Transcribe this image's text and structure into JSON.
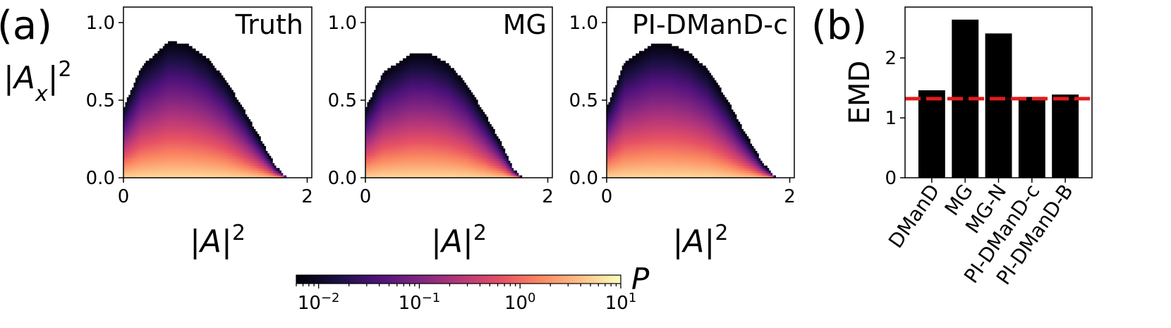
{
  "panel_labels": {
    "a": "(a)",
    "b": "(b)"
  },
  "colorbar": {
    "label": "P",
    "colormap": "magma",
    "scale": "log",
    "range": [
      0.006,
      10
    ],
    "tick_labels": [
      {
        "base": "10",
        "exp": "−2",
        "value": 0.01
      },
      {
        "base": "10",
        "exp": "−1",
        "value": 0.1
      },
      {
        "base": "10",
        "exp": "0",
        "value": 1
      },
      {
        "base": "10",
        "exp": "1",
        "value": 10
      }
    ]
  },
  "chart_data": [
    {
      "type": "heatmap",
      "title": "Truth",
      "xlabel": "|A|²",
      "ylabel": "|Aₓ|²",
      "xlim": [
        0,
        2.05
      ],
      "ylim": [
        0,
        1.1
      ],
      "xticks": [
        "0",
        "2"
      ],
      "yticks": [
        "0.0",
        "0.5",
        "1.0"
      ],
      "support_edge": [
        [
          0,
          0.45
        ],
        [
          0.2,
          0.72
        ],
        [
          0.5,
          0.88
        ],
        [
          0.7,
          0.86
        ],
        [
          0.9,
          0.78
        ],
        [
          1.1,
          0.64
        ],
        [
          1.3,
          0.45
        ],
        [
          1.5,
          0.24
        ],
        [
          1.65,
          0.08
        ],
        [
          1.78,
          0
        ]
      ]
    },
    {
      "type": "heatmap",
      "title": "MG",
      "xlabel": "|A|²",
      "ylabel": "",
      "xlim": [
        0,
        2.05
      ],
      "ylim": [
        0,
        1.1
      ],
      "xticks": [
        "0",
        "2"
      ],
      "yticks": [
        "0.0",
        "0.5",
        "1.0"
      ],
      "support_edge": [
        [
          0,
          0.45
        ],
        [
          0.2,
          0.68
        ],
        [
          0.5,
          0.8
        ],
        [
          0.7,
          0.8
        ],
        [
          0.9,
          0.74
        ],
        [
          1.1,
          0.61
        ],
        [
          1.3,
          0.42
        ],
        [
          1.5,
          0.21
        ],
        [
          1.62,
          0.06
        ],
        [
          1.72,
          0
        ]
      ]
    },
    {
      "type": "heatmap",
      "title": "PI-DManD-c",
      "xlabel": "|A|²",
      "ylabel": "",
      "xlim": [
        0,
        2.05
      ],
      "ylim": [
        0,
        1.1
      ],
      "xticks": [
        "0",
        "2"
      ],
      "yticks": [
        "0.0",
        "0.5",
        "1.0"
      ],
      "support_edge": [
        [
          0,
          0.45
        ],
        [
          0.2,
          0.75
        ],
        [
          0.5,
          0.86
        ],
        [
          0.7,
          0.86
        ],
        [
          0.9,
          0.81
        ],
        [
          1.1,
          0.7
        ],
        [
          1.3,
          0.52
        ],
        [
          1.5,
          0.3
        ],
        [
          1.7,
          0.1
        ],
        [
          1.85,
          0
        ]
      ]
    },
    {
      "type": "bar",
      "title": "",
      "xlabel": "",
      "ylabel": "EMD",
      "categories": [
        "DManD",
        "MG",
        "MG-N",
        "PI-DManD-c",
        "PI-DManD-B"
      ],
      "values": [
        1.46,
        2.64,
        2.41,
        1.35,
        1.39
      ],
      "ylim": [
        0,
        2.85
      ],
      "yticks": [
        "0",
        "1",
        "2"
      ],
      "reference_line": {
        "value": 1.32,
        "color": "#e41a1c",
        "style": "dashed"
      },
      "bar_color": "#000000"
    }
  ]
}
